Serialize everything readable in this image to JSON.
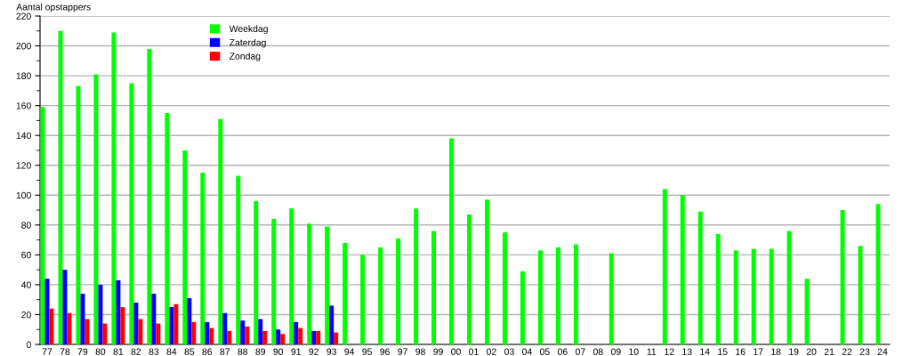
{
  "chart_data": {
    "type": "bar",
    "ylabel": "Aantal opstappers",
    "categories": [
      "77",
      "78",
      "79",
      "80",
      "81",
      "82",
      "83",
      "84",
      "85",
      "86",
      "87",
      "88",
      "89",
      "90",
      "91",
      "92",
      "93",
      "94",
      "95",
      "96",
      "97",
      "98",
      "99",
      "00",
      "01",
      "02",
      "03",
      "04",
      "05",
      "06",
      "07",
      "08",
      "09",
      "10",
      "11",
      "12",
      "13",
      "14",
      "15",
      "16",
      "17",
      "18",
      "19",
      "20",
      "21",
      "22",
      "23",
      "24"
    ],
    "series": [
      {
        "name": "Weekdag",
        "color": "#00ff00",
        "values": [
          159,
          210,
          173,
          181,
          209,
          175,
          198,
          155,
          130,
          115,
          151,
          113,
          96,
          84,
          91,
          81,
          79,
          68,
          60,
          65,
          71,
          91,
          76,
          138,
          87,
          97,
          75,
          49,
          63,
          65,
          67,
          null,
          61,
          null,
          null,
          104,
          100,
          89,
          74,
          63,
          64,
          64,
          76,
          44,
          null,
          90,
          66,
          94
        ]
      },
      {
        "name": "Zaterdag",
        "color": "#0000ff",
        "values": [
          44,
          50,
          34,
          40,
          43,
          28,
          34,
          25,
          31,
          15,
          21,
          16,
          17,
          10,
          15,
          9,
          26,
          null,
          null,
          null,
          null,
          null,
          null,
          null,
          null,
          null,
          null,
          null,
          null,
          null,
          null,
          null,
          null,
          null,
          null,
          null,
          null,
          null,
          null,
          null,
          null,
          null,
          null,
          null,
          null,
          null,
          null,
          null
        ]
      },
      {
        "name": "Zondag",
        "color": "#ff0000",
        "values": [
          24,
          21,
          17,
          14,
          25,
          17,
          14,
          27,
          15,
          11,
          9,
          12,
          9,
          7,
          11,
          9,
          8,
          null,
          null,
          null,
          null,
          null,
          null,
          null,
          null,
          null,
          null,
          null,
          null,
          null,
          null,
          null,
          null,
          null,
          null,
          null,
          null,
          null,
          null,
          null,
          null,
          null,
          null,
          null,
          null,
          null,
          null,
          null
        ]
      }
    ],
    "ylim": [
      0,
      220
    ],
    "yticks": [
      0,
      {
        "value": 10,
        "label": null
      },
      20,
      {
        "value": 30,
        "label": null
      },
      40,
      {
        "value": 50,
        "label": null
      },
      60,
      {
        "value": 70,
        "label": null
      },
      80,
      {
        "value": 90,
        "label": null
      },
      100,
      {
        "value": 110,
        "label": null
      },
      120,
      {
        "value": 130,
        "label": null
      },
      140,
      {
        "value": 150,
        "label": null
      },
      160,
      {
        "value": 170,
        "label": null
      },
      180,
      {
        "value": 190,
        "label": null
      },
      200,
      {
        "value": 210,
        "label": null
      },
      220
    ],
    "grid": "y",
    "legend": "top left"
  }
}
